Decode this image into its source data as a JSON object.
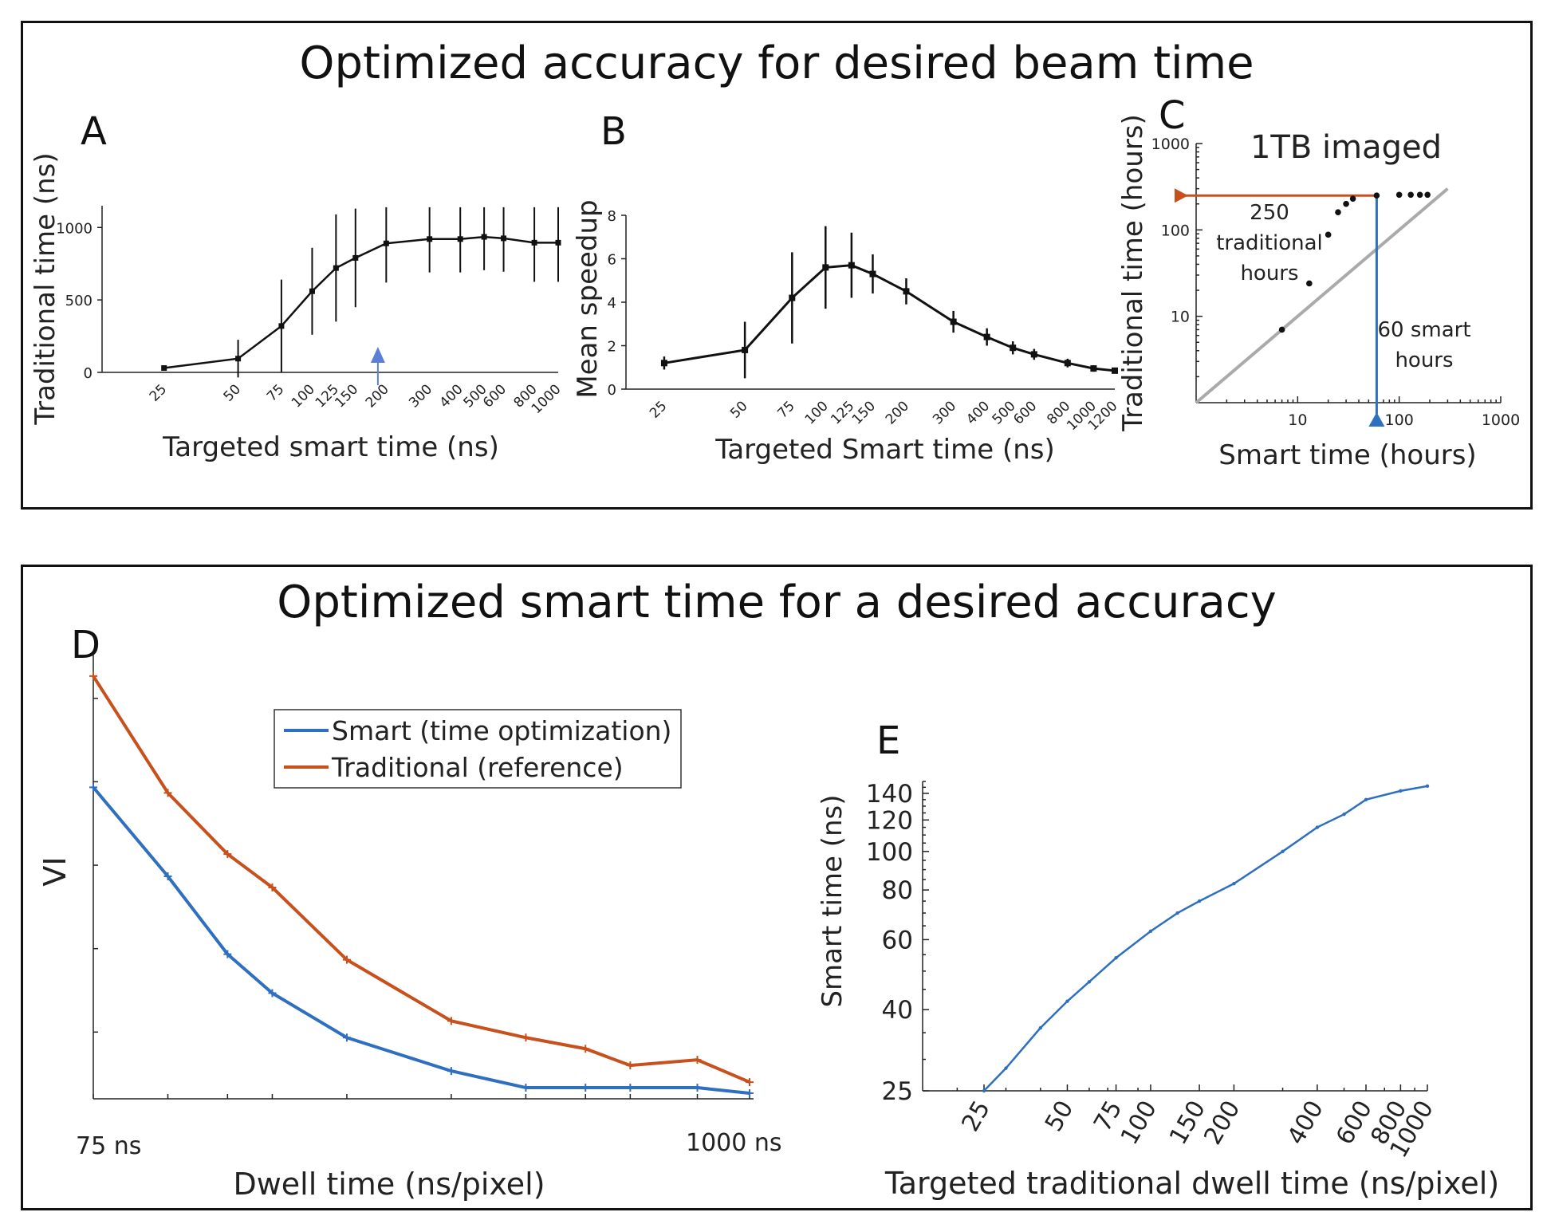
{
  "top_panel": {
    "title": "Optimized accuracy for  desired beam time"
  },
  "bottom_panel": {
    "title": "Optimized smart time for a desired accuracy"
  },
  "colors": {
    "black": "#111111",
    "orange": "#c8501c",
    "blue": "#2e6fc0",
    "gray": "#aaaaaa",
    "marker_blue": "#5b7fd6"
  },
  "chart_data": [
    {
      "id": "A",
      "panel_letter": "A",
      "type": "line",
      "x_scale": "log",
      "xlabel": "Targeted smart time (ns)",
      "ylabel": "Traditional time (ns)",
      "ylim": [
        0,
        1150
      ],
      "yticks": [
        0,
        500,
        1000
      ],
      "x_tick_labels": [
        "25",
        "50",
        "75",
        "100",
        "125",
        "150",
        "200",
        "300",
        "400",
        "500",
        "600",
        "800",
        "1000"
      ],
      "x": [
        25,
        50,
        75,
        100,
        125,
        150,
        200,
        300,
        400,
        500,
        600,
        800,
        1000
      ],
      "y": [
        30,
        95,
        320,
        560,
        720,
        790,
        890,
        920,
        920,
        935,
        925,
        895,
        895
      ],
      "err": [
        0,
        130,
        320,
        300,
        370,
        340,
        270,
        230,
        230,
        230,
        230,
        270,
        270
      ],
      "marker": {
        "x": 185,
        "label": "▲"
      }
    },
    {
      "id": "B",
      "panel_letter": "B",
      "type": "line",
      "x_scale": "log",
      "xlabel": "Targeted Smart time (ns)",
      "ylabel": "Mean speedup",
      "ylim": [
        0,
        8
      ],
      "yticks": [
        0,
        2,
        4,
        6,
        8
      ],
      "x_tick_labels": [
        "25",
        "50",
        "75",
        "100",
        "125",
        "150",
        "200",
        "300",
        "400",
        "500",
        "600",
        "800",
        "1000",
        "1200"
      ],
      "x": [
        25,
        50,
        75,
        100,
        125,
        150,
        200,
        300,
        400,
        500,
        600,
        800,
        1000,
        1200
      ],
      "y": [
        1.2,
        1.8,
        4.2,
        5.6,
        5.7,
        5.3,
        4.5,
        3.1,
        2.4,
        1.9,
        1.6,
        1.2,
        0.95,
        0.85
      ],
      "err": [
        0.3,
        1.3,
        2.1,
        1.9,
        1.5,
        0.9,
        0.6,
        0.5,
        0.4,
        0.3,
        0.25,
        0.2,
        0.15,
        0.1
      ]
    },
    {
      "id": "C",
      "panel_letter": "C",
      "type": "scatter",
      "title": "1TB imaged",
      "x_scale": "log",
      "y_scale": "log",
      "xlabel": "Smart time (hours)",
      "ylabel": "Traditional time (hours)",
      "xlim": [
        1,
        1000
      ],
      "ylim": [
        1,
        1000
      ],
      "xticks": [
        10,
        100,
        1000
      ],
      "yticks": [
        10,
        100,
        1000
      ],
      "x_tick_labels": [
        "10",
        "100",
        "1000"
      ],
      "y_tick_labels": [
        "10",
        "100",
        "1000"
      ],
      "points_x": [
        7,
        13,
        20,
        25,
        30,
        35,
        60,
        100,
        130,
        160,
        190
      ],
      "points_y": [
        7,
        24,
        88,
        160,
        200,
        230,
        250,
        255,
        255,
        255,
        255
      ],
      "diagonal": [
        [
          1,
          1
        ],
        [
          300,
          300
        ]
      ],
      "traditional_ref": {
        "y": 250,
        "label_lines": [
          "250",
          "traditional",
          "hours"
        ]
      },
      "smart_ref": {
        "x": 60,
        "label_lines": [
          "60 smart",
          "hours"
        ]
      }
    },
    {
      "id": "D",
      "panel_letter": "D",
      "type": "line",
      "xlabel": "Dwell time (ns/pixel)",
      "ylabel": "VI",
      "x_tick_labels": [
        "75 ns",
        "1000 ns"
      ],
      "series": [
        {
          "name": "Smart (time optimization)",
          "color": "#2e6fc0",
          "x": [
            75,
            100,
            125,
            150,
            200,
            300,
            400,
            500,
            600,
            800,
            1000
          ],
          "values": [
            0.74,
            0.58,
            0.44,
            0.37,
            0.29,
            0.23,
            0.2,
            0.2,
            0.2,
            0.2,
            0.19
          ]
        },
        {
          "name": "Traditional (reference)",
          "color": "#c8501c",
          "x": [
            75,
            100,
            125,
            150,
            200,
            300,
            400,
            500,
            600,
            800,
            1000
          ],
          "values": [
            0.94,
            0.73,
            0.62,
            0.56,
            0.43,
            0.32,
            0.29,
            0.27,
            0.24,
            0.25,
            0.21
          ]
        }
      ],
      "x_index": [
        0,
        1,
        1.8,
        2.4,
        3.4,
        4.8,
        5.8,
        6.6,
        7.2,
        8.1,
        8.8
      ],
      "ylim": [
        0.18,
        0.98
      ],
      "legend_position": "top-center"
    },
    {
      "id": "E",
      "panel_letter": "E",
      "type": "line",
      "x_scale": "log",
      "y_scale": "log",
      "xlabel": "Targeted traditional dwell time (ns/pixel)",
      "ylabel": "Smart time (ns)",
      "xlim": [
        15,
        1000
      ],
      "ylim": [
        25,
        150
      ],
      "yticks": [
        25,
        40,
        60,
        80,
        100,
        120,
        140
      ],
      "x_tick_labels": [
        "25",
        "50",
        "75",
        "100",
        "150",
        "200",
        "400",
        "600",
        "800",
        "1000"
      ],
      "x_tick_values": [
        25,
        50,
        75,
        100,
        150,
        200,
        400,
        600,
        800,
        1000
      ],
      "x": [
        25,
        30,
        40,
        50,
        60,
        75,
        100,
        125,
        150,
        200,
        300,
        400,
        500,
        600,
        800,
        1000
      ],
      "y": [
        25,
        28.5,
        36,
        42,
        47,
        54,
        63,
        70,
        75,
        83,
        100,
        115,
        124,
        135,
        142,
        146
      ]
    }
  ]
}
